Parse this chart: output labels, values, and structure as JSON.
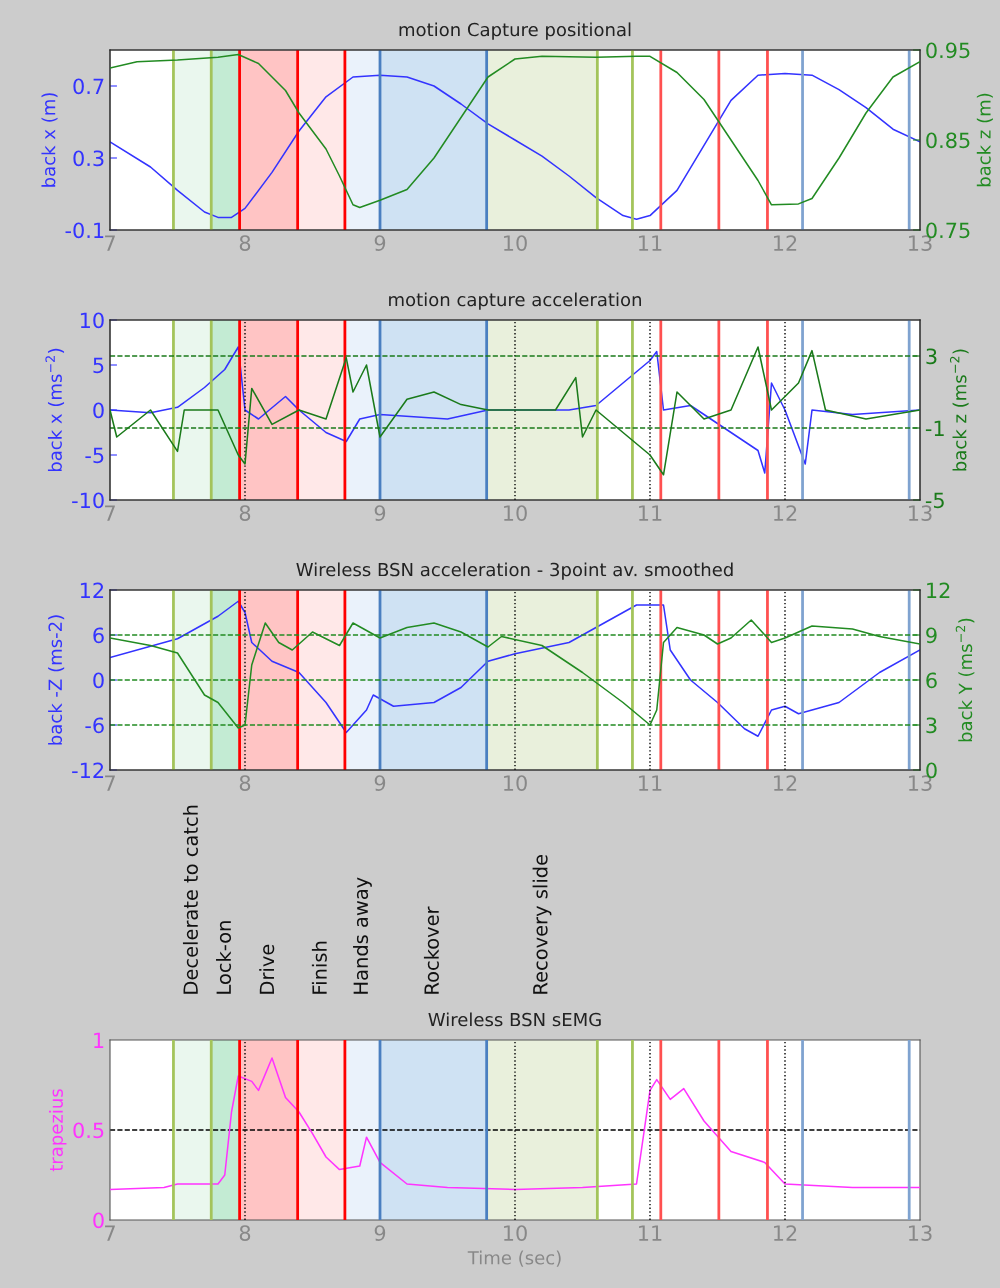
{
  "chart_data": [
    {
      "type": "line",
      "title": "motion Capture positional",
      "ylabel": "back x (m)",
      "y2label": "back z (m)",
      "xlim": [
        7,
        13
      ],
      "xticks": [
        7,
        8,
        9,
        10,
        11,
        12,
        13
      ],
      "ylim": [
        -0.1,
        0.9
      ],
      "yticks": [
        -0.1,
        0.3,
        0.7
      ],
      "y2lim": [
        0.75,
        0.95
      ],
      "y2ticks": [
        0.75,
        0.85,
        0.95
      ],
      "x": [
        7.0,
        7.3,
        7.5,
        7.7,
        7.8,
        7.9,
        8.0,
        8.2,
        8.4,
        8.6,
        8.8,
        9.0,
        9.2,
        9.4,
        9.6,
        9.8,
        10.0,
        10.2,
        10.4,
        10.6,
        10.8,
        10.9,
        11.0,
        11.2,
        11.4,
        11.6,
        11.8,
        12.0,
        12.2,
        12.4,
        12.6,
        12.8,
        13.0
      ],
      "series": [
        {
          "color": "#3333ff",
          "values": [
            0.39,
            0.25,
            0.12,
            0.0,
            -0.03,
            -0.03,
            0.02,
            0.22,
            0.45,
            0.64,
            0.75,
            0.76,
            0.75,
            0.7,
            0.6,
            0.49,
            0.4,
            0.31,
            0.2,
            0.08,
            -0.02,
            -0.04,
            -0.02,
            0.12,
            0.37,
            0.62,
            0.76,
            0.77,
            0.76,
            0.68,
            0.58,
            0.46,
            0.39
          ]
        },
        {
          "color": "#228b22",
          "axis": "y2",
          "x": [
            7.0,
            7.2,
            7.5,
            7.8,
            7.95,
            8.1,
            8.3,
            8.4,
            8.6,
            8.7,
            8.8,
            8.85,
            9.0,
            9.2,
            9.4,
            9.6,
            9.8,
            10.0,
            10.2,
            10.6,
            10.9,
            11.0,
            11.2,
            11.4,
            11.6,
            11.8,
            11.9,
            12.1,
            12.2,
            12.4,
            12.6,
            12.8,
            13.0
          ],
          "values": [
            0.93,
            0.937,
            0.939,
            0.942,
            0.945,
            0.935,
            0.905,
            0.88,
            0.84,
            0.81,
            0.778,
            0.775,
            0.783,
            0.795,
            0.83,
            0.875,
            0.92,
            0.94,
            0.943,
            0.942,
            0.943,
            0.943,
            0.925,
            0.895,
            0.85,
            0.805,
            0.778,
            0.779,
            0.785,
            0.83,
            0.88,
            0.92,
            0.937
          ]
        }
      ],
      "bands": [
        {
          "axis": "x",
          "from": 7.47,
          "to": 7.75,
          "color": "#eaf7ee"
        },
        {
          "axis": "x",
          "from": 7.75,
          "to": 7.96,
          "color": "#c3ebd3"
        },
        {
          "axis": "x",
          "from": 7.96,
          "to": 8.39,
          "color": "#ffc4c4"
        },
        {
          "axis": "x",
          "from": 8.39,
          "to": 8.74,
          "color": "#ffe8e8"
        },
        {
          "axis": "x",
          "from": 8.74,
          "to": 9.0,
          "color": "#eaf2fb"
        },
        {
          "axis": "x",
          "from": 9.0,
          "to": 9.79,
          "color": "#cfe2f3"
        },
        {
          "axis": "x",
          "from": 9.79,
          "to": 10.61,
          "color": "#e9f0dc"
        }
      ],
      "ref_lines": [
        {
          "axis": "x",
          "value": 7.47,
          "color": "#a3c45a"
        },
        {
          "axis": "x",
          "value": 7.75,
          "color": "#a3c45a"
        },
        {
          "axis": "x",
          "value": 7.96,
          "color": "#ff0000"
        },
        {
          "axis": "x",
          "value": 8.39,
          "color": "#ff0000"
        },
        {
          "axis": "x",
          "value": 8.74,
          "color": "#ff0000"
        },
        {
          "axis": "x",
          "value": 9.0,
          "color": "#4a7fc0"
        },
        {
          "axis": "x",
          "value": 9.79,
          "color": "#4a7fc0"
        },
        {
          "axis": "x",
          "value": 10.61,
          "color": "#a3c45a"
        },
        {
          "axis": "x",
          "value": 10.87,
          "color": "#a3c45a"
        },
        {
          "axis": "x",
          "value": 11.08,
          "color": "#ff5050"
        },
        {
          "axis": "x",
          "value": 11.51,
          "color": "#ff5050"
        },
        {
          "axis": "x",
          "value": 11.87,
          "color": "#ff5050"
        },
        {
          "axis": "x",
          "value": 12.13,
          "color": "#7fa3d0"
        },
        {
          "axis": "x",
          "value": 12.92,
          "color": "#7fa3d0"
        }
      ]
    },
    {
      "type": "line",
      "title": "motion capture acceleration",
      "ylabel": "back x (ms$^{−2}$)",
      "y2label": "back z (ms$^{−2}$)",
      "xlim": [
        7,
        13
      ],
      "xticks": [
        7,
        8,
        9,
        10,
        11,
        12,
        13
      ],
      "ylim": [
        -10,
        10
      ],
      "yticks": [
        -10,
        -5,
        0,
        5,
        10
      ],
      "y2lim": [
        -5,
        5
      ],
      "y2ticks": [
        -5,
        -1,
        3
      ],
      "x": [
        7.0,
        7.3,
        7.5,
        7.7,
        7.85,
        7.95,
        8.0,
        8.1,
        8.3,
        8.4,
        8.6,
        8.75,
        8.85,
        9.0,
        9.5,
        9.8,
        10.0,
        10.4,
        10.6,
        10.8,
        11.0,
        11.05,
        11.1,
        11.3,
        11.5,
        11.7,
        11.8,
        11.85,
        11.9,
        12.0,
        12.15,
        12.2,
        12.5,
        13.0
      ],
      "series": [
        {
          "color": "#3333ff",
          "values": [
            0,
            -0.3,
            0.3,
            2.5,
            4.5,
            7,
            0,
            -1,
            1.5,
            0,
            -2.5,
            -3.5,
            -1,
            -0.5,
            -1,
            0,
            0,
            0,
            0.5,
            3,
            5.5,
            6.5,
            0,
            0.5,
            -1.5,
            -3.5,
            -4.5,
            -7,
            3,
            0,
            -6,
            0,
            -0.5,
            0
          ]
        },
        {
          "color": "#1a7a1a",
          "axis": "y2",
          "x": [
            7.0,
            7.05,
            7.3,
            7.5,
            7.55,
            7.8,
            7.95,
            8.0,
            8.05,
            8.2,
            8.4,
            8.6,
            8.75,
            8.8,
            8.9,
            9.0,
            9.2,
            9.4,
            9.6,
            9.8,
            10.3,
            10.45,
            10.5,
            10.6,
            11.0,
            11.1,
            11.2,
            11.4,
            11.6,
            11.8,
            11.9,
            12.1,
            12.2,
            12.3,
            12.6,
            13.0
          ],
          "values": [
            0,
            -1.5,
            0,
            -2.3,
            0,
            0,
            -2.5,
            -3,
            1.2,
            -0.8,
            0,
            -0.5,
            2.9,
            1,
            2.5,
            -1.5,
            0.6,
            1.0,
            0.3,
            0,
            0,
            1.8,
            -1.5,
            0,
            -2.5,
            -3.6,
            1.0,
            -0.5,
            0,
            3.5,
            0,
            1.5,
            3.3,
            0,
            -0.5,
            0
          ]
        }
      ],
      "bands": [
        {
          "axis": "x",
          "from": 7.47,
          "to": 7.75,
          "color": "#eaf7ee"
        },
        {
          "axis": "x",
          "from": 7.75,
          "to": 7.96,
          "color": "#c3ebd3"
        },
        {
          "axis": "x",
          "from": 7.96,
          "to": 8.39,
          "color": "#ffc4c4"
        },
        {
          "axis": "x",
          "from": 8.39,
          "to": 8.74,
          "color": "#ffe8e8"
        },
        {
          "axis": "x",
          "from": 8.74,
          "to": 9.0,
          "color": "#eaf2fb"
        },
        {
          "axis": "x",
          "from": 9.0,
          "to": 9.79,
          "color": "#cfe2f3"
        },
        {
          "axis": "x",
          "from": 9.79,
          "to": 10.61,
          "color": "#e9f0dc"
        }
      ],
      "ref_lines": [
        {
          "axis": "y2",
          "value": 3,
          "color": "#1a7a1a",
          "line_style": "dashed"
        },
        {
          "axis": "y2",
          "value": -1,
          "color": "#1a7a1a",
          "line_style": "dashed"
        },
        {
          "axis": "x",
          "value": 8,
          "color": "#000000",
          "line_style": "dotted"
        },
        {
          "axis": "x",
          "value": 10,
          "color": "#000000",
          "line_style": "dotted"
        },
        {
          "axis": "x",
          "value": 11,
          "color": "#000000",
          "line_style": "dotted"
        },
        {
          "axis": "x",
          "value": 12,
          "color": "#000000",
          "line_style": "dotted"
        },
        {
          "axis": "x",
          "value": 7.47,
          "color": "#a3c45a"
        },
        {
          "axis": "x",
          "value": 7.75,
          "color": "#a3c45a"
        },
        {
          "axis": "x",
          "value": 7.96,
          "color": "#ff0000"
        },
        {
          "axis": "x",
          "value": 8.39,
          "color": "#ff0000"
        },
        {
          "axis": "x",
          "value": 8.74,
          "color": "#ff0000"
        },
        {
          "axis": "x",
          "value": 9.0,
          "color": "#4a7fc0"
        },
        {
          "axis": "x",
          "value": 9.79,
          "color": "#4a7fc0"
        },
        {
          "axis": "x",
          "value": 10.61,
          "color": "#a3c45a"
        },
        {
          "axis": "x",
          "value": 10.87,
          "color": "#a3c45a"
        },
        {
          "axis": "x",
          "value": 11.08,
          "color": "#ff5050"
        },
        {
          "axis": "x",
          "value": 11.51,
          "color": "#ff5050"
        },
        {
          "axis": "x",
          "value": 11.87,
          "color": "#ff5050"
        },
        {
          "axis": "x",
          "value": 12.13,
          "color": "#7fa3d0"
        },
        {
          "axis": "x",
          "value": 12.92,
          "color": "#7fa3d0"
        }
      ]
    },
    {
      "type": "line",
      "title": "Wireless BSN acceleration - 3point av. smoothed",
      "ylabel": "back -Z (ms-2)",
      "y2label": "back Y (ms$^{−2}$)",
      "xlim": [
        7,
        13
      ],
      "xticks": [
        7,
        8,
        9,
        10,
        11,
        12,
        13
      ],
      "ylim": [
        -12,
        12
      ],
      "yticks": [
        -12,
        -6,
        0,
        6,
        12
      ],
      "y2lim": [
        0,
        12
      ],
      "y2ticks": [
        0,
        3,
        6,
        9,
        12
      ],
      "x": [
        7.0,
        7.5,
        7.8,
        7.95,
        8.0,
        8.05,
        8.2,
        8.4,
        8.6,
        8.75,
        8.9,
        8.95,
        9.1,
        9.4,
        9.6,
        9.8,
        10.0,
        10.4,
        10.7,
        10.9,
        11.1,
        11.15,
        11.3,
        11.5,
        11.7,
        11.8,
        11.9,
        12.0,
        12.1,
        12.4,
        12.7,
        13.0
      ],
      "series": [
        {
          "color": "#3333ff",
          "values": [
            3,
            5.5,
            8.5,
            10.5,
            9,
            5,
            2.5,
            1,
            -3,
            -7,
            -4,
            -2,
            -3.5,
            -3,
            -1,
            2.5,
            3.5,
            5,
            8,
            10,
            10,
            4,
            0,
            -3,
            -6.5,
            -7.5,
            -4,
            -3.5,
            -4.5,
            -3,
            1,
            4
          ]
        },
        {
          "color": "#228b22",
          "axis": "y2",
          "x": [
            7.0,
            7.3,
            7.5,
            7.7,
            7.8,
            7.95,
            8.0,
            8.05,
            8.15,
            8.25,
            8.35,
            8.5,
            8.7,
            8.8,
            9.0,
            9.2,
            9.4,
            9.6,
            9.8,
            9.9,
            10.2,
            10.5,
            10.8,
            11.0,
            11.05,
            11.1,
            11.2,
            11.4,
            11.5,
            11.6,
            11.75,
            11.9,
            12.0,
            12.2,
            12.5,
            12.7,
            13.0
          ],
          "values": [
            8.8,
            8.3,
            7.8,
            5,
            4.5,
            2.8,
            3,
            7,
            9.8,
            8.5,
            8.0,
            9.2,
            8.3,
            9.8,
            8.8,
            9.5,
            9.8,
            9.2,
            8.2,
            8.9,
            8.3,
            6.5,
            4.5,
            3,
            4,
            8.5,
            9.5,
            9,
            8.4,
            8.8,
            10,
            8.5,
            8.8,
            9.6,
            9.4,
            8.9,
            8.4
          ]
        }
      ],
      "bands": [
        {
          "axis": "x",
          "from": 7.47,
          "to": 7.75,
          "color": "#eaf7ee"
        },
        {
          "axis": "x",
          "from": 7.75,
          "to": 7.96,
          "color": "#c3ebd3"
        },
        {
          "axis": "x",
          "from": 7.96,
          "to": 8.39,
          "color": "#ffc4c4"
        },
        {
          "axis": "x",
          "from": 8.39,
          "to": 8.74,
          "color": "#ffe8e8"
        },
        {
          "axis": "x",
          "from": 8.74,
          "to": 9.0,
          "color": "#eaf2fb"
        },
        {
          "axis": "x",
          "from": 9.0,
          "to": 9.79,
          "color": "#cfe2f3"
        },
        {
          "axis": "x",
          "from": 9.79,
          "to": 10.61,
          "color": "#e9f0dc"
        }
      ],
      "ref_lines": [
        {
          "axis": "y2",
          "value": 9,
          "color": "#228b22",
          "line_style": "dashed"
        },
        {
          "axis": "y2",
          "value": 6,
          "color": "#228b22",
          "line_style": "dashed"
        },
        {
          "axis": "y2",
          "value": 3,
          "color": "#228b22",
          "line_style": "dashed"
        },
        {
          "axis": "x",
          "value": 8,
          "color": "#000000",
          "line_style": "dotted"
        },
        {
          "axis": "x",
          "value": 10,
          "color": "#000000",
          "line_style": "dotted"
        },
        {
          "axis": "x",
          "value": 11,
          "color": "#000000",
          "line_style": "dotted"
        },
        {
          "axis": "x",
          "value": 12,
          "color": "#000000",
          "line_style": "dotted"
        },
        {
          "axis": "x",
          "value": 7.47,
          "color": "#a3c45a"
        },
        {
          "axis": "x",
          "value": 7.75,
          "color": "#a3c45a"
        },
        {
          "axis": "x",
          "value": 7.96,
          "color": "#ff0000"
        },
        {
          "axis": "x",
          "value": 8.39,
          "color": "#ff0000"
        },
        {
          "axis": "x",
          "value": 8.74,
          "color": "#ff0000"
        },
        {
          "axis": "x",
          "value": 9.0,
          "color": "#4a7fc0"
        },
        {
          "axis": "x",
          "value": 9.79,
          "color": "#4a7fc0"
        },
        {
          "axis": "x",
          "value": 10.61,
          "color": "#a3c45a"
        },
        {
          "axis": "x",
          "value": 10.87,
          "color": "#a3c45a"
        },
        {
          "axis": "x",
          "value": 11.08,
          "color": "#ff5050"
        },
        {
          "axis": "x",
          "value": 11.51,
          "color": "#ff5050"
        },
        {
          "axis": "x",
          "value": 11.87,
          "color": "#ff5050"
        },
        {
          "axis": "x",
          "value": 12.13,
          "color": "#7fa3d0"
        },
        {
          "axis": "x",
          "value": 12.92,
          "color": "#7fa3d0"
        }
      ]
    },
    {
      "type": "line",
      "title": "Wireless BSN sEMG",
      "xlabel": "Time (sec)",
      "ylabel": "trapezius",
      "xlim": [
        7,
        13
      ],
      "xticks": [
        7,
        8,
        9,
        10,
        11,
        12,
        13
      ],
      "ylim": [
        0,
        1
      ],
      "yticks": [
        0,
        0.5,
        1
      ],
      "x": [
        7.0,
        7.4,
        7.5,
        7.8,
        7.85,
        7.9,
        7.95,
        8.05,
        8.1,
        8.2,
        8.3,
        8.4,
        8.5,
        8.6,
        8.7,
        8.85,
        8.9,
        9.0,
        9.2,
        9.5,
        10.0,
        10.5,
        10.9,
        11.0,
        11.05,
        11.15,
        11.25,
        11.4,
        11.6,
        11.85,
        12.0,
        12.5,
        13.0
      ],
      "series": [
        {
          "color": "#ff33ff",
          "values": [
            0.17,
            0.18,
            0.2,
            0.2,
            0.25,
            0.6,
            0.8,
            0.77,
            0.72,
            0.9,
            0.68,
            0.6,
            0.48,
            0.35,
            0.28,
            0.3,
            0.46,
            0.32,
            0.2,
            0.18,
            0.17,
            0.18,
            0.2,
            0.72,
            0.78,
            0.67,
            0.73,
            0.55,
            0.38,
            0.32,
            0.2,
            0.18,
            0.18
          ]
        }
      ],
      "bands": [
        {
          "axis": "x",
          "from": 7.47,
          "to": 7.75,
          "color": "#eaf7ee"
        },
        {
          "axis": "x",
          "from": 7.75,
          "to": 7.96,
          "color": "#c3ebd3"
        },
        {
          "axis": "x",
          "from": 7.96,
          "to": 8.39,
          "color": "#ffc4c4"
        },
        {
          "axis": "x",
          "from": 8.39,
          "to": 8.74,
          "color": "#ffe8e8"
        },
        {
          "axis": "x",
          "from": 8.74,
          "to": 9.0,
          "color": "#eaf2fb"
        },
        {
          "axis": "x",
          "from": 9.0,
          "to": 9.79,
          "color": "#cfe2f3"
        },
        {
          "axis": "x",
          "from": 9.79,
          "to": 10.61,
          "color": "#e9f0dc"
        }
      ],
      "ref_lines": [
        {
          "axis": "y",
          "value": 0.5,
          "color": "#000000",
          "line_style": "dashed"
        },
        {
          "axis": "x",
          "value": 8,
          "color": "#000000",
          "line_style": "dotted"
        },
        {
          "axis": "x",
          "value": 10,
          "color": "#000000",
          "line_style": "dotted"
        },
        {
          "axis": "x",
          "value": 11,
          "color": "#000000",
          "line_style": "dotted"
        },
        {
          "axis": "x",
          "value": 12,
          "color": "#000000",
          "line_style": "dotted"
        },
        {
          "axis": "x",
          "value": 7.47,
          "color": "#a3c45a"
        },
        {
          "axis": "x",
          "value": 7.75,
          "color": "#a3c45a"
        },
        {
          "axis": "x",
          "value": 7.96,
          "color": "#ff0000"
        },
        {
          "axis": "x",
          "value": 8.39,
          "color": "#ff0000"
        },
        {
          "axis": "x",
          "value": 8.74,
          "color": "#ff0000"
        },
        {
          "axis": "x",
          "value": 9.0,
          "color": "#4a7fc0"
        },
        {
          "axis": "x",
          "value": 9.79,
          "color": "#4a7fc0"
        },
        {
          "axis": "x",
          "value": 10.61,
          "color": "#a3c45a"
        },
        {
          "axis": "x",
          "value": 10.87,
          "color": "#a3c45a"
        },
        {
          "axis": "x",
          "value": 11.08,
          "color": "#ff5050"
        },
        {
          "axis": "x",
          "value": 11.51,
          "color": "#ff5050"
        },
        {
          "axis": "x",
          "value": 11.87,
          "color": "#ff5050"
        },
        {
          "axis": "x",
          "value": 12.13,
          "color": "#7fa3d0"
        },
        {
          "axis": "x",
          "value": 12.92,
          "color": "#7fa3d0"
        }
      ],
      "annotations": [
        "Decelerate to catch",
        "Lock-on",
        "Drive",
        "Finish",
        "Hands away",
        "Rockover",
        "Recovery slide"
      ]
    }
  ]
}
